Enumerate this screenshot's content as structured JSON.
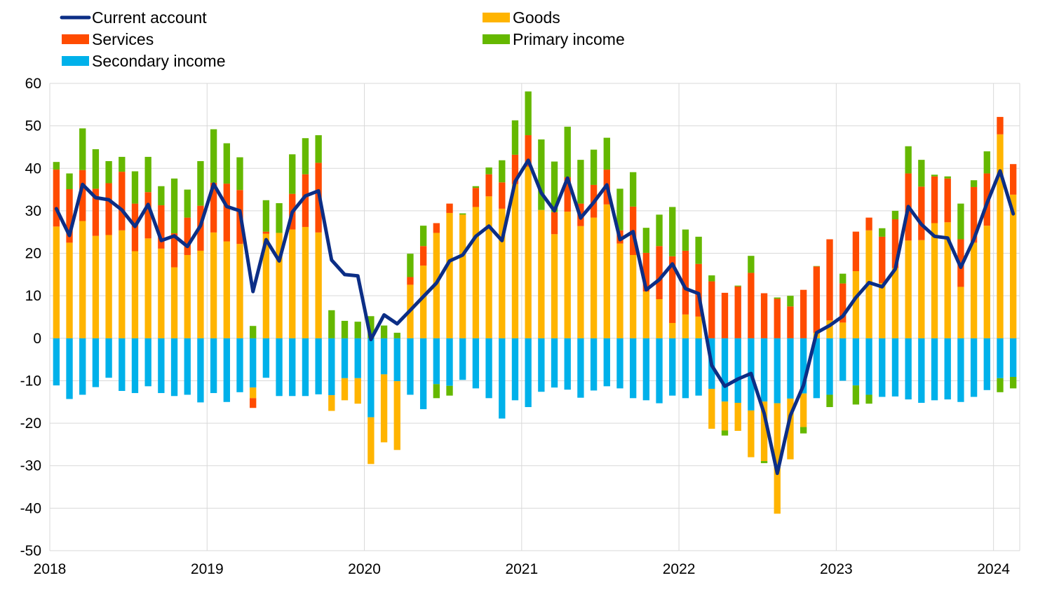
{
  "chart_data": {
    "type": "bar",
    "stacked": true,
    "ylim": [
      -50,
      60
    ],
    "yticks": [
      -50,
      -40,
      -30,
      -20,
      -10,
      0,
      10,
      20,
      30,
      40,
      50,
      60
    ],
    "xtick_labels": [
      "2018",
      "2019",
      "2020",
      "2021",
      "2022",
      "2023",
      "2024"
    ],
    "grid": true,
    "legend_position": "top",
    "x_start": "2018-01",
    "colors": {
      "current_account": "#0c2e86",
      "goods": "#ffb400",
      "services": "#ff4b00",
      "primary_income": "#65b800",
      "secondary_income": "#00b1ea"
    },
    "legend": [
      {
        "key": "current_account",
        "label": "Current account",
        "marker": "line"
      },
      {
        "key": "goods",
        "label": "Goods",
        "marker": "box"
      },
      {
        "key": "services",
        "label": "Services",
        "marker": "box"
      },
      {
        "key": "primary_income",
        "label": "Primary income",
        "marker": "box"
      },
      {
        "key": "secondary_income",
        "label": "Secondary income",
        "marker": "box"
      }
    ],
    "series": {
      "goods": [
        26.3,
        22.5,
        27.6,
        24.1,
        24.3,
        25.4,
        20.5,
        23.5,
        21.1,
        16.7,
        19.6,
        20.6,
        24.9,
        22.8,
        22.2,
        -2.5,
        24.6,
        24.8,
        25.6,
        26.2,
        24.9,
        -3.7,
        -5.2,
        -6.0,
        -11.0,
        -16.0,
        -16.2,
        12.6,
        17.1,
        24.8,
        29.5,
        29.1,
        30.9,
        33.4,
        30.5,
        36.3,
        40.4,
        30.2,
        24.5,
        29.8,
        26.4,
        28.4,
        31.5,
        22.3,
        19.6,
        11.0,
        9.2,
        3.6,
        5.6,
        5.1,
        -9.4,
        -6.8,
        -6.6,
        -11.0,
        -14.0,
        -26.0,
        -14.3,
        -7.9,
        1.3,
        4.2,
        3.7,
        15.8,
        25.4,
        13.0,
        16.5,
        23.0,
        23.1,
        27.1,
        27.3,
        12.1,
        22.5,
        26.5,
        48.0,
        33.8
      ],
      "services": [
        13.4,
        12.6,
        12.0,
        11.1,
        12.2,
        13.8,
        11.2,
        10.9,
        10.2,
        8.0,
        8.8,
        10.6,
        11.7,
        13.6,
        12.7,
        -2.3,
        0.5,
        0.0,
        8.4,
        12.4,
        16.4,
        0.0,
        0.0,
        0.0,
        0.0,
        0.0,
        0.0,
        1.8,
        4.6,
        2.3,
        2.2,
        0.0,
        4.5,
        5.2,
        6.2,
        6.9,
        7.4,
        0.0,
        5.2,
        8.1,
        5.3,
        7.7,
        8.2,
        3.1,
        11.4,
        9.1,
        12.5,
        15.7,
        15.0,
        12.4,
        13.4,
        10.7,
        12.2,
        15.4,
        10.6,
        9.3,
        7.5,
        11.4,
        15.6,
        19.1,
        9.2,
        9.3,
        3.0,
        10.9,
        11.5,
        15.8,
        12.6,
        11.0,
        10.3,
        11.2,
        13.1,
        12.3,
        4.1,
        7.2
      ],
      "primary_income": [
        1.8,
        3.7,
        9.8,
        9.3,
        5.2,
        3.5,
        7.6,
        8.3,
        4.5,
        12.9,
        6.6,
        10.5,
        12.6,
        9.5,
        7.7,
        2.9,
        7.4,
        7.0,
        9.3,
        8.5,
        6.5,
        6.6,
        4.1,
        3.9,
        5.2,
        3.0,
        1.3,
        5.5,
        4.8,
        -3.3,
        -2.3,
        0.3,
        0.4,
        1.6,
        5.2,
        8.1,
        10.3,
        16.6,
        11.9,
        11.9,
        10.3,
        8.3,
        7.5,
        9.8,
        8.1,
        5.9,
        7.4,
        11.6,
        5.0,
        6.4,
        1.4,
        -1.2,
        0.2,
        4.0,
        -0.5,
        0.3,
        2.5,
        -1.5,
        0.1,
        -2.9,
        2.3,
        -4.5,
        -2.1,
        2.0,
        2.0,
        6.4,
        6.3,
        0.4,
        0.5,
        8.4,
        1.6,
        5.2,
        -3.3,
        -2.7
      ],
      "secondary_income": [
        -11.1,
        -14.3,
        -13.3,
        -11.5,
        -9.3,
        -12.4,
        -12.9,
        -11.3,
        -12.9,
        -13.6,
        -13.3,
        -15.1,
        -12.9,
        -15.0,
        -12.7,
        -11.6,
        -9.3,
        -13.6,
        -13.6,
        -13.6,
        -13.2,
        -13.4,
        -9.4,
        -9.4,
        -18.6,
        -8.5,
        -10.1,
        -13.3,
        -16.7,
        -10.8,
        -11.2,
        -9.8,
        -11.8,
        -14.1,
        -18.9,
        -14.6,
        -16.2,
        -12.6,
        -11.6,
        -12.1,
        -14.0,
        -12.3,
        -11.3,
        -11.8,
        -14.1,
        -14.6,
        -15.3,
        -13.5,
        -14.1,
        -13.5,
        -11.9,
        -14.9,
        -15.2,
        -17.0,
        -14.9,
        -15.3,
        -14.2,
        -13.0,
        -14.1,
        -13.3,
        -10.0,
        -11.1,
        -13.3,
        -13.8,
        -13.7,
        -14.4,
        -15.2,
        -14.6,
        -14.4,
        -15.0,
        -13.8,
        -12.2,
        -9.4,
        -9.1
      ],
      "current_account": [
        30.5,
        24.2,
        36.2,
        33.1,
        32.6,
        30.2,
        26.3,
        31.5,
        23.0,
        24.1,
        21.6,
        26.5,
        36.3,
        31.0,
        30.0,
        11.0,
        23.2,
        18.2,
        29.7,
        33.5,
        34.7,
        18.4,
        15.0,
        14.7,
        -0.3,
        5.5,
        3.4,
        6.6,
        9.8,
        13.0,
        18.2,
        19.6,
        24.0,
        26.4,
        23.0,
        36.9,
        41.9,
        34.2,
        30.0,
        37.7,
        28.3,
        32.0,
        36.1,
        23.2,
        25.1,
        11.4,
        13.8,
        17.5,
        11.7,
        10.5,
        -6.4,
        -11.3,
        -9.6,
        -8.3,
        -17.7,
        -31.8,
        -18.2,
        -11.1,
        1.3,
        3.0,
        5.2,
        9.6,
        13.1,
        12.1,
        16.3,
        31.0,
        26.8,
        24.0,
        23.6,
        16.7,
        23.3,
        31.8,
        39.4,
        29.3
      ]
    }
  }
}
